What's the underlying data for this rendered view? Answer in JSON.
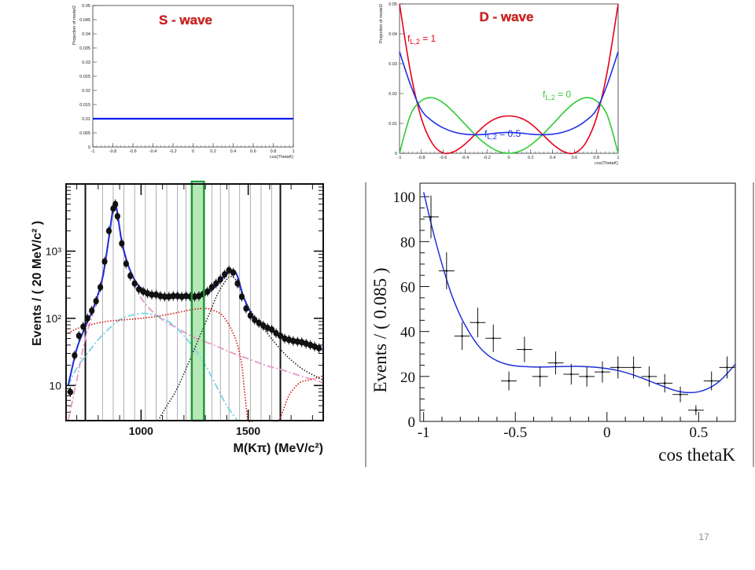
{
  "slide": {
    "page_number": "17"
  },
  "colors": {
    "slide_title_red": "#e02020",
    "swave_blue": "#0a1ef0",
    "dwave_red": "#e8001a",
    "dwave_blue": "#2030e6",
    "dwave_green": "#2ecc33",
    "fit_blue": "#1f2fd6",
    "highlight_green": "#9be09b"
  },
  "chart_data": [
    {
      "id": "s_wave",
      "type": "line",
      "title": "S - wave",
      "xlabel": "cos(ThetaK)",
      "ylabel": "Projection of model2",
      "xlim": [
        -1,
        1
      ],
      "ylim": [
        0,
        0.05
      ],
      "x_ticks": [
        "-1",
        "-0.8",
        "-0.6",
        "-0.4",
        "-0.2",
        "0",
        "0.2",
        "0.4",
        "0.6",
        "0.8",
        "1"
      ],
      "y_ticks": [
        "0",
        "0.005",
        "0.01",
        "0.015",
        "0.02",
        "0.025",
        "0.03",
        "0.035",
        "0.04",
        "0.045",
        "0.05"
      ],
      "series": [
        {
          "x": [
            -1,
            1
          ],
          "y": [
            0.01,
            0.01
          ]
        }
      ]
    },
    {
      "id": "d_wave",
      "type": "line",
      "title": "D - wave",
      "xlabel": "cos(ThetaK)",
      "ylabel": "Projection of model2",
      "xlim": [
        -1,
        1
      ],
      "ylim": [
        0,
        0.05
      ],
      "x_ticks": [
        "-1",
        "-0.8",
        "-0.6",
        "-0.4",
        "-0.2",
        "0",
        "0.2",
        "0.4",
        "0.6",
        "0.8",
        "1"
      ],
      "y_ticks": [
        "0",
        "0.01",
        "0.02",
        "0.03",
        "0.04",
        "0.05"
      ],
      "annotations": [
        {
          "prefix": "f",
          "subscript": "L,2",
          "suffix": " = 1",
          "color": "#e8001a"
        },
        {
          "prefix": "f",
          "subscript": "L,2",
          "suffix": " = 0",
          "color": "#2ecc33"
        },
        {
          "prefix": "f",
          "subscript": "L,2",
          "suffix": " = 0.5",
          "color": "#2030e6"
        }
      ],
      "series": [
        {
          "fL2": 1,
          "color": "#e8001a",
          "x": [
            -1,
            -0.9,
            -0.8,
            -0.7,
            -0.6,
            -0.5,
            -0.4,
            -0.3,
            -0.2,
            -0.1,
            0,
            0.1,
            0.2,
            0.3,
            0.4,
            0.5,
            0.6,
            0.7,
            0.8,
            0.9,
            1
          ],
          "y": [
            0.05,
            0.0273,
            0.0117,
            0.0033,
            0.0001,
            0.0006,
            0.0031,
            0.0066,
            0.0099,
            0.0119,
            0.0125,
            0.0119,
            0.0099,
            0.0066,
            0.0031,
            0.0006,
            0.0001,
            0.0033,
            0.0117,
            0.0273,
            0.05
          ]
        },
        {
          "fL2": 0,
          "color": "#2ecc33",
          "x": [
            -1,
            -0.9,
            -0.8,
            -0.7,
            -0.6,
            -0.5,
            -0.4,
            -0.3,
            -0.2,
            -0.1,
            0,
            0.1,
            0.2,
            0.3,
            0.4,
            0.5,
            0.6,
            0.7,
            0.8,
            0.9,
            1
          ],
          "y": [
            0,
            0.0128,
            0.0176,
            0.0186,
            0.0169,
            0.0136,
            0.0097,
            0.0059,
            0.0028,
            0.0007,
            0,
            0.0007,
            0.0028,
            0.0059,
            0.0097,
            0.0136,
            0.0169,
            0.0186,
            0.0176,
            0.0128,
            0
          ]
        },
        {
          "fL2": 0.5,
          "color": "#2030e6",
          "x": [
            -1,
            -0.9,
            -0.8,
            -0.7,
            -0.6,
            -0.5,
            -0.4,
            -0.3,
            -0.2,
            -0.1,
            0,
            0.1,
            0.2,
            0.3,
            0.4,
            0.5,
            0.6,
            0.7,
            0.8,
            0.9,
            1
          ],
          "y": [
            0.034,
            0.023,
            0.0145,
            0.0108,
            0.0085,
            0.0071,
            0.0064,
            0.0062,
            0.0064,
            0.0068,
            0.007,
            0.0068,
            0.0064,
            0.0062,
            0.0064,
            0.0071,
            0.0085,
            0.0108,
            0.0145,
            0.023,
            0.034
          ]
        }
      ]
    },
    {
      "id": "mass_spectrum",
      "type": "scatter",
      "xlabel": "M(Kπ)  (MeV/c²)",
      "ylabel": "Events / ( 20 MeV/c² )",
      "y_scale": "log",
      "xlim": [
        650,
        1850
      ],
      "ylim": [
        3,
        10000
      ],
      "x_ticks": [
        "1000",
        "1500"
      ],
      "y_ticks": [
        "10",
        "10²",
        "10³"
      ],
      "bin_edges": [
        740,
        820,
        870,
        920,
        970,
        1020,
        1070,
        1120,
        1170,
        1210,
        1240,
        1290,
        1330,
        1370,
        1410,
        1460,
        1510,
        1560,
        1610,
        1650
      ],
      "highlight_bin": [
        1240,
        1290
      ],
      "data": {
        "x": [
          670,
          690,
          710,
          730,
          750,
          770,
          790,
          810,
          830,
          850,
          870,
          880,
          890,
          910,
          930,
          950,
          970,
          990,
          1010,
          1030,
          1050,
          1070,
          1090,
          1110,
          1130,
          1150,
          1170,
          1190,
          1210,
          1230,
          1250,
          1270,
          1290,
          1310,
          1330,
          1350,
          1370,
          1390,
          1410,
          1430,
          1450,
          1470,
          1490,
          1510,
          1530,
          1550,
          1570,
          1590,
          1610,
          1630,
          1650,
          1670,
          1690,
          1710,
          1730,
          1750,
          1770,
          1790,
          1810,
          1830
        ],
        "y": [
          8,
          28,
          55,
          75,
          100,
          130,
          180,
          290,
          700,
          2000,
          4300,
          5000,
          3300,
          1300,
          650,
          430,
          330,
          270,
          250,
          235,
          225,
          225,
          215,
          210,
          210,
          215,
          215,
          210,
          215,
          210,
          210,
          215,
          230,
          250,
          290,
          330,
          380,
          450,
          520,
          480,
          330,
          210,
          140,
          110,
          95,
          85,
          78,
          72,
          68,
          60,
          55,
          50,
          48,
          46,
          45,
          44,
          42,
          40,
          38,
          36
        ]
      },
      "fit_total": {
        "x": [
          660,
          700,
          740,
          780,
          820,
          850,
          870,
          880,
          890,
          910,
          940,
          980,
          1030,
          1080,
          1130,
          1180,
          1230,
          1280,
          1320,
          1360,
          1400,
          1430,
          1450,
          1480,
          1520,
          1560,
          1620,
          1700,
          1780,
          1850
        ],
        "y": [
          10,
          35,
          75,
          150,
          400,
          1600,
          4500,
          5200,
          3600,
          1400,
          620,
          330,
          245,
          220,
          212,
          212,
          212,
          218,
          250,
          330,
          460,
          520,
          420,
          200,
          110,
          82,
          62,
          48,
          40,
          34
        ]
      },
      "components": [
        {
          "name": "pink dash-dot",
          "color": "#e59ac6",
          "style": "dashdot",
          "x": [
            660,
            700,
            740,
            780,
            820,
            850,
            870,
            880,
            890,
            910,
            940,
            980,
            1030,
            1100,
            1180,
            1260,
            1340,
            1420,
            1500,
            1580,
            1660,
            1740,
            1850
          ],
          "y": [
            3,
            12,
            50,
            130,
            370,
            1500,
            4400,
            5100,
            3500,
            1300,
            560,
            260,
            150,
            95,
            68,
            50,
            40,
            31,
            25,
            20,
            17,
            14,
            11
          ]
        },
        {
          "name": "cyan dash-dot",
          "color": "#7ad3e6",
          "style": "dashdot",
          "x": [
            660,
            700,
            750,
            800,
            850,
            900,
            950,
            1000,
            1050,
            1100,
            1150,
            1200,
            1250,
            1300,
            1350,
            1400,
            1450
          ],
          "y": [
            10,
            18,
            30,
            48,
            70,
            95,
            110,
            118,
            115,
            100,
            80,
            55,
            35,
            20,
            10,
            5,
            3
          ]
        },
        {
          "name": "red dotted",
          "color": "#dd1111",
          "style": "dotted",
          "x": [
            660,
            700,
            760,
            840,
            920,
            1000,
            1080,
            1160,
            1240,
            1300,
            1340,
            1380,
            1420,
            1450,
            1470,
            1480,
            1490,
            1500,
            1530,
            1560,
            1600,
            1640,
            1660,
            1680,
            1700,
            1740,
            1780,
            1820,
            1850
          ],
          "y": [
            60,
            70,
            80,
            90,
            95,
            100,
            108,
            120,
            135,
            140,
            130,
            110,
            70,
            40,
            20,
            10,
            5,
            3,
            3,
            3,
            3,
            3,
            4,
            6,
            8,
            11,
            12,
            13,
            14
          ]
        },
        {
          "name": "black dotted",
          "color": "#222222",
          "style": "dotted",
          "x": [
            1080,
            1120,
            1160,
            1200,
            1240,
            1280,
            1320,
            1360,
            1400,
            1420,
            1440,
            1460,
            1500,
            1540,
            1580,
            1620,
            1660,
            1700,
            1760,
            1850
          ],
          "y": [
            3,
            5,
            8,
            15,
            30,
            60,
            120,
            240,
            380,
            420,
            380,
            280,
            150,
            95,
            65,
            45,
            32,
            24,
            17,
            12
          ]
        }
      ]
    },
    {
      "id": "cos_theta_fit",
      "type": "scatter",
      "xlabel": "cos thetaK",
      "ylabel": "Events / ( 0.085 )",
      "xlim": [
        -1.02,
        0.7
      ],
      "ylim": [
        0,
        106
      ],
      "x_ticks": [
        "-1",
        "-0.5",
        "0",
        "0.5"
      ],
      "y_ticks": [
        "0",
        "20",
        "40",
        "60",
        "80",
        "100"
      ],
      "data": {
        "x": [
          -0.96,
          -0.875,
          -0.79,
          -0.705,
          -0.62,
          -0.535,
          -0.45,
          -0.365,
          -0.28,
          -0.195,
          -0.11,
          -0.025,
          0.06,
          0.145,
          0.23,
          0.315,
          0.4,
          0.485,
          0.57,
          0.655
        ],
        "y": [
          91,
          67,
          38,
          44,
          37,
          18,
          32,
          20,
          26,
          21,
          20,
          22,
          24,
          24,
          20,
          17,
          12,
          5,
          18,
          24
        ],
        "err": [
          9.5,
          8.2,
          6.2,
          6.6,
          6.1,
          4.2,
          5.7,
          4.5,
          5.1,
          4.6,
          4.5,
          4.7,
          4.9,
          4.9,
          4.5,
          4.1,
          3.5,
          2.2,
          4.2,
          4.9
        ]
      },
      "fit": {
        "x": [
          -1.0,
          -0.95,
          -0.9,
          -0.85,
          -0.8,
          -0.75,
          -0.7,
          -0.65,
          -0.6,
          -0.55,
          -0.5,
          -0.45,
          -0.4,
          -0.35,
          -0.3,
          -0.25,
          -0.2,
          -0.15,
          -0.1,
          -0.05,
          0.0,
          0.05,
          0.1,
          0.15,
          0.2,
          0.25,
          0.3,
          0.35,
          0.4,
          0.45,
          0.5,
          0.55,
          0.6,
          0.65,
          0.7
        ],
        "y": [
          102,
          85,
          70,
          57,
          47,
          39.5,
          33.5,
          29.5,
          27,
          25.5,
          24.7,
          24.4,
          24.2,
          24.2,
          24.3,
          24.4,
          24.5,
          24.5,
          24.3,
          24.0,
          23.5,
          22.8,
          21.8,
          20.5,
          19.0,
          17.4,
          15.8,
          14.3,
          13.2,
          12.8,
          13.2,
          14.6,
          17.0,
          20.8,
          25.5
        ]
      }
    }
  ]
}
